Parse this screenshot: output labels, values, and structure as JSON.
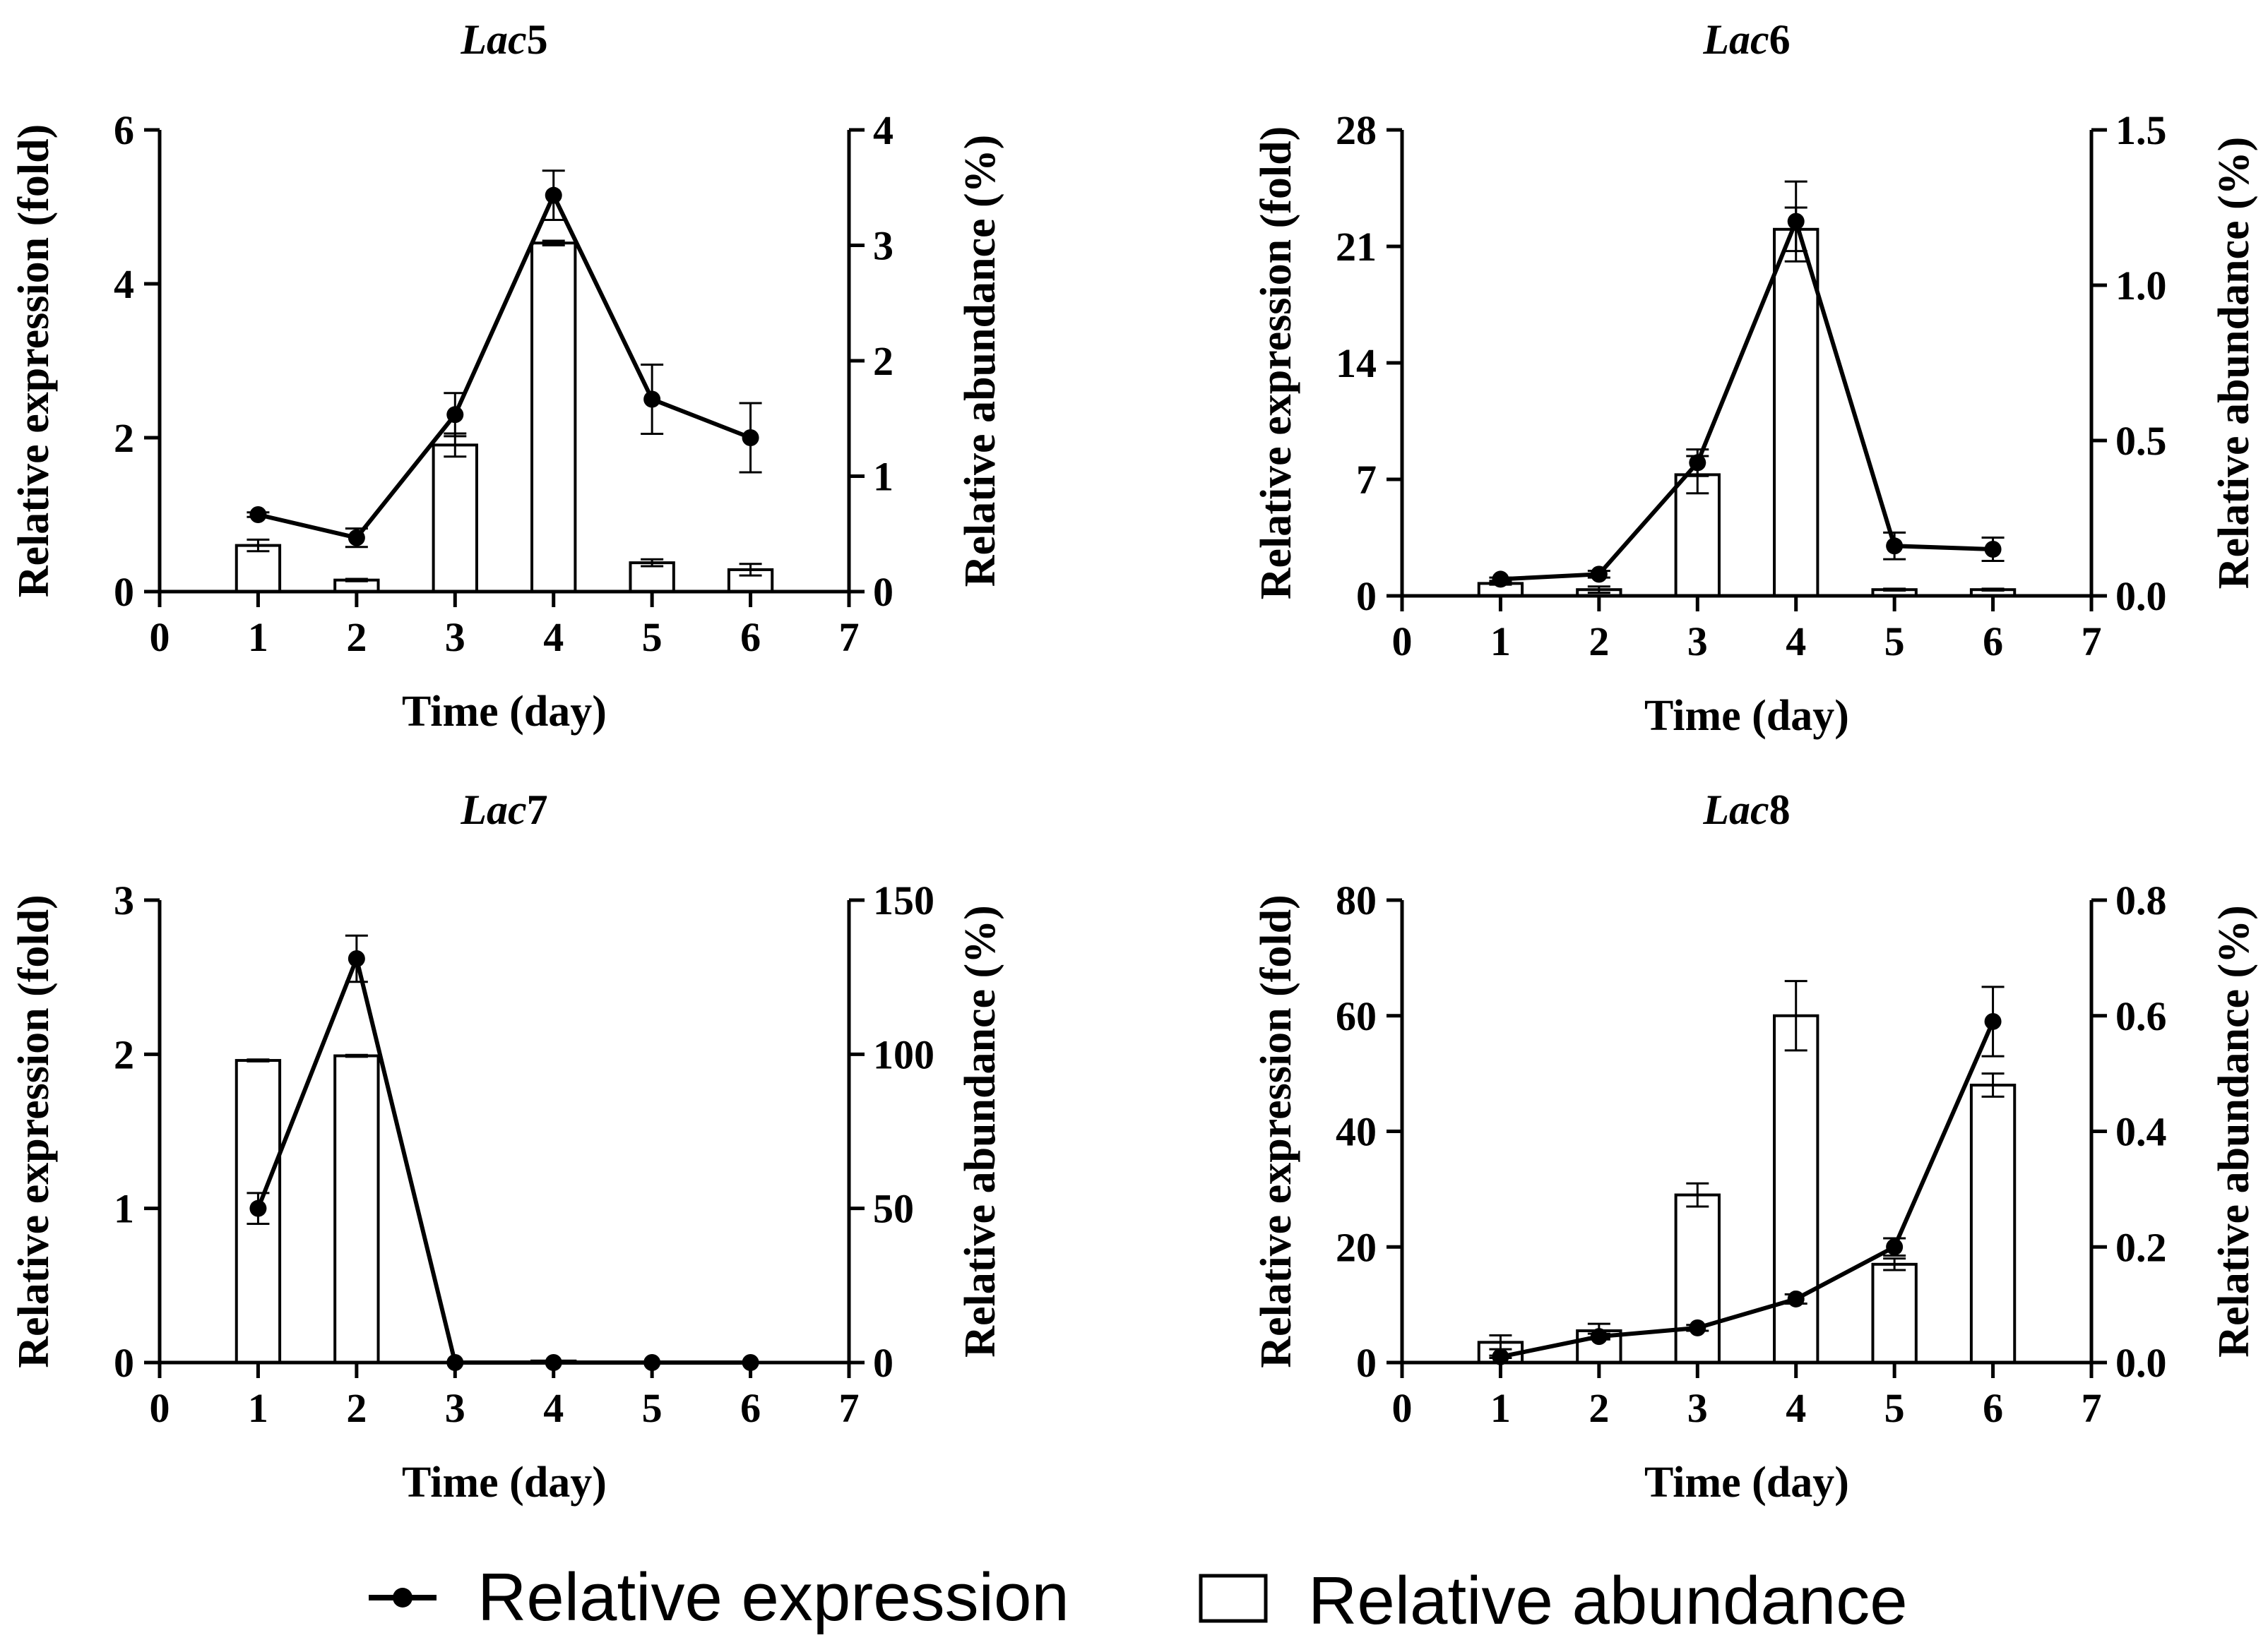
{
  "colors": {
    "ink": "#000000",
    "bar_fill": "#ffffff"
  },
  "legend": {
    "line_label": "Relative expression",
    "bar_label": "Relative abundance"
  },
  "chart_data": [
    {
      "type": "bar+line",
      "title_prefix": "Lac",
      "title_suffix": "5",
      "xlabel": "Time (day)",
      "ylabel_left": "Relative expression (fold)",
      "ylabel_right": "Relative abundance (%)",
      "xlim": [
        0,
        7
      ],
      "xticks": [
        "0",
        "1",
        "2",
        "3",
        "4",
        "5",
        "6",
        "7"
      ],
      "ylim_left": [
        0,
        6
      ],
      "yticks_left": [
        "0",
        "2",
        "4",
        "6"
      ],
      "ylim_right": [
        0,
        4
      ],
      "yticks_right": [
        "0",
        "1",
        "2",
        "3",
        "4"
      ],
      "x": [
        1,
        2,
        3,
        4,
        5,
        6
      ],
      "expression": [
        1.0,
        0.7,
        2.3,
        5.15,
        2.5,
        2.0
      ],
      "expression_err": [
        0.03,
        0.12,
        0.28,
        0.32,
        0.45,
        0.45
      ],
      "abundance": [
        0.4,
        0.1,
        1.27,
        3.02,
        0.25,
        0.19
      ],
      "abundance_err": [
        0.05,
        0.01,
        0.1,
        0.02,
        0.03,
        0.05
      ]
    },
    {
      "type": "bar+line",
      "title_prefix": "Lac",
      "title_suffix": "6",
      "xlabel": "Time (day)",
      "ylabel_left": "Relative expression (fold)",
      "ylabel_right": "Relative abundance (%)",
      "xlim": [
        0,
        7
      ],
      "xticks": [
        "0",
        "1",
        "2",
        "3",
        "4",
        "5",
        "6",
        "7"
      ],
      "ylim_left": [
        0,
        28
      ],
      "yticks_left": [
        "0",
        "7",
        "14",
        "21",
        "28"
      ],
      "ylim_right": [
        0,
        1.5
      ],
      "yticks_right": [
        "0.0",
        "0.5",
        "1.0",
        "1.5"
      ],
      "x": [
        1,
        2,
        3,
        4,
        5,
        6
      ],
      "expression": [
        1.0,
        1.3,
        8.0,
        22.5,
        3.0,
        2.8
      ],
      "expression_err": [
        0.1,
        0.2,
        0.8,
        2.4,
        0.8,
        0.7
      ],
      "abundance": [
        0.04,
        0.02,
        0.39,
        1.18,
        0.02,
        0.02
      ],
      "abundance_err": [
        0.004,
        0.01,
        0.06,
        0.07,
        0.003,
        0.003
      ]
    },
    {
      "type": "bar+line",
      "title_prefix": "Lac",
      "title_suffix": "7",
      "xlabel": "Time (day)",
      "ylabel_left": "Relative expression (fold)",
      "ylabel_right": "Relative abundance (%)",
      "xlim": [
        0,
        7
      ],
      "xticks": [
        "0",
        "1",
        "2",
        "3",
        "4",
        "5",
        "6",
        "7"
      ],
      "ylim_left": [
        0,
        3
      ],
      "yticks_left": [
        "0",
        "1",
        "2",
        "3"
      ],
      "ylim_right": [
        0,
        150
      ],
      "yticks_right": [
        "0",
        "50",
        "100",
        "150"
      ],
      "x": [
        1,
        2,
        3,
        4,
        5,
        6
      ],
      "expression": [
        1.0,
        2.62,
        0.0,
        0.0,
        0.0,
        0.0
      ],
      "expression_err": [
        0.1,
        0.15,
        0.0,
        0.0,
        0.0,
        0.0
      ],
      "abundance": [
        98,
        99.5,
        0,
        0.5,
        0,
        0
      ],
      "abundance_err": [
        0.3,
        0.3,
        0,
        0,
        0,
        0
      ]
    },
    {
      "type": "bar+line",
      "title_prefix": "Lac",
      "title_suffix": "8",
      "xlabel": "Time (day)",
      "ylabel_left": "Relative expression (fold)",
      "ylabel_right": "Relative abundance (%)",
      "xlim": [
        0,
        7
      ],
      "xticks": [
        "0",
        "1",
        "2",
        "3",
        "4",
        "5",
        "6",
        "7"
      ],
      "ylim_left": [
        0,
        80
      ],
      "yticks_left": [
        "0",
        "20",
        "40",
        "60",
        "80"
      ],
      "ylim_right": [
        0,
        0.8
      ],
      "yticks_right": [
        "0.0",
        "0.2",
        "0.4",
        "0.6",
        "0.8"
      ],
      "x": [
        1,
        2,
        3,
        4,
        5,
        6
      ],
      "expression": [
        1.0,
        4.5,
        6.0,
        11.0,
        20.0,
        59.0
      ],
      "expression_err": [
        0.2,
        0.5,
        0.5,
        0.8,
        1.5,
        6.0
      ],
      "abundance": [
        0.035,
        0.055,
        0.29,
        0.6,
        0.17,
        0.48
      ],
      "abundance_err": [
        0.012,
        0.012,
        0.02,
        0.06,
        0.01,
        0.02
      ]
    }
  ]
}
